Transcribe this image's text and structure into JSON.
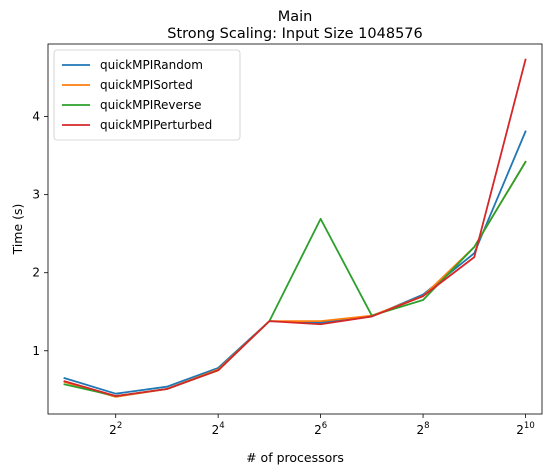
{
  "chart_data": {
    "type": "line",
    "title": "Main",
    "subtitle": "Strong Scaling: Input Size 1048576",
    "xlabel": "# of processors",
    "ylabel": "Time (s)",
    "x_scale": "log2",
    "x": [
      2,
      4,
      8,
      16,
      32,
      64,
      128,
      256,
      512,
      1024
    ],
    "xlim": [
      1.6,
      1280
    ],
    "ylim": [
      0.19,
      4.93
    ],
    "x_ticks": [
      {
        "value": 4,
        "base": "2",
        "exp": "2"
      },
      {
        "value": 16,
        "base": "2",
        "exp": "4"
      },
      {
        "value": 64,
        "base": "2",
        "exp": "6"
      },
      {
        "value": 256,
        "base": "2",
        "exp": "8"
      },
      {
        "value": 1024,
        "base": "2",
        "exp": "10"
      }
    ],
    "y_ticks": [
      {
        "value": 1,
        "label": "1"
      },
      {
        "value": 2,
        "label": "2"
      },
      {
        "value": 3,
        "label": "3"
      },
      {
        "value": 4,
        "label": "4"
      }
    ],
    "grid": false,
    "legend_position": "top-left",
    "series": [
      {
        "name": "quickMPIRandom",
        "color": "#1f77b4",
        "values": [
          0.65,
          0.45,
          0.54,
          0.78,
          1.38,
          1.36,
          1.44,
          1.72,
          2.25,
          3.81
        ]
      },
      {
        "name": "quickMPISorted",
        "color": "#ff7f0e",
        "values": [
          0.6,
          0.41,
          0.51,
          0.76,
          1.38,
          1.38,
          1.45,
          1.7,
          2.33,
          3.42
        ]
      },
      {
        "name": "quickMPIReverse",
        "color": "#2ca02c",
        "values": [
          0.57,
          0.42,
          0.51,
          0.75,
          1.38,
          2.69,
          1.45,
          1.65,
          2.33,
          3.42
        ]
      },
      {
        "name": "quickMPIPerturbed",
        "color": "#d62728",
        "values": [
          0.61,
          0.42,
          0.51,
          0.75,
          1.38,
          1.34,
          1.44,
          1.7,
          2.2,
          4.73
        ]
      }
    ]
  }
}
